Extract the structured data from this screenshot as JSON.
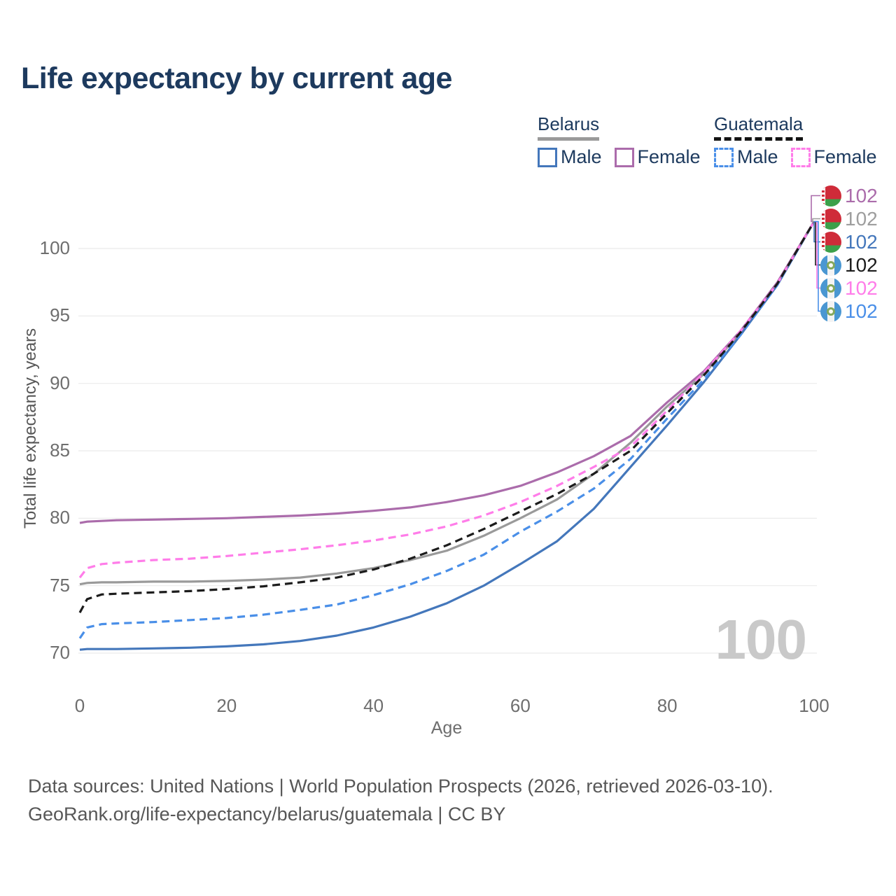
{
  "title": "Life expectancy by current age",
  "watermark": "100",
  "legend": {
    "groups": [
      {
        "name": "Belarus",
        "line_style": "solid",
        "underline_color": "#9a9a9a",
        "items": [
          {
            "label": "Male",
            "color": "#4477bb"
          },
          {
            "label": "Female",
            "color": "#ab6cab"
          }
        ]
      },
      {
        "name": "Guatemala",
        "line_style": "dashed",
        "underline_color": "#141414",
        "items": [
          {
            "label": "Male",
            "color": "#4a8fe8"
          },
          {
            "label": "Female",
            "color": "#ff7de9"
          }
        ]
      }
    ]
  },
  "right_labels": [
    {
      "flag": "Belarus",
      "value": "102",
      "color": "#ab6cab"
    },
    {
      "flag": "Belarus",
      "value": "102",
      "color": "#9e9e9e"
    },
    {
      "flag": "Belarus",
      "value": "102",
      "color": "#4477bb"
    },
    {
      "flag": "Guatemala",
      "value": "102",
      "color": "#1c1c1c"
    },
    {
      "flag": "Guatemala",
      "value": "102",
      "color": "#ff7de9"
    },
    {
      "flag": "Guatemala",
      "value": "102",
      "color": "#4a8fe8"
    }
  ],
  "chart_data": {
    "type": "line",
    "title": "Life expectancy by current age",
    "xlabel": "Age",
    "ylabel": "Total life expectancy, years",
    "xlim": [
      0,
      100
    ],
    "ylim": [
      68.5,
      103
    ],
    "x_ticks": [
      0,
      20,
      40,
      60,
      80,
      100
    ],
    "y_ticks": [
      70,
      75,
      80,
      85,
      90,
      95,
      100
    ],
    "grid": true,
    "legend_position": "top-right",
    "end_value": 102,
    "x": [
      0,
      1,
      3,
      5,
      10,
      15,
      20,
      25,
      30,
      35,
      40,
      45,
      50,
      55,
      60,
      65,
      70,
      75,
      80,
      85,
      90,
      95,
      100
    ],
    "series": [
      {
        "name": "Belarus Female",
        "color": "#ab6cab",
        "dash": false,
        "values": [
          79.65,
          79.75,
          79.8,
          79.85,
          79.9,
          79.95,
          80.0,
          80.1,
          80.2,
          80.35,
          80.55,
          80.8,
          81.2,
          81.7,
          82.4,
          83.4,
          84.6,
          86.1,
          88.6,
          90.9,
          93.9,
          97.5,
          102
        ]
      },
      {
        "name": "Belarus",
        "color": "#9a9a9a",
        "dash": false,
        "values": [
          75.1,
          75.2,
          75.25,
          75.25,
          75.3,
          75.3,
          75.35,
          75.45,
          75.6,
          75.9,
          76.3,
          76.9,
          77.6,
          78.7,
          80.0,
          81.4,
          83.3,
          85.6,
          88.3,
          90.7,
          93.8,
          97.4,
          102
        ]
      },
      {
        "name": "Belarus Male",
        "color": "#4477bb",
        "dash": false,
        "values": [
          70.25,
          70.3,
          70.3,
          70.3,
          70.35,
          70.4,
          70.5,
          70.65,
          70.9,
          71.3,
          71.9,
          72.7,
          73.7,
          75.0,
          76.6,
          78.3,
          80.7,
          83.8,
          86.9,
          90.1,
          93.6,
          97.3,
          102
        ]
      },
      {
        "name": "Guatemala",
        "color": "#1c1c1c",
        "dash": true,
        "values": [
          73.0,
          74.0,
          74.35,
          74.4,
          74.5,
          74.6,
          74.75,
          74.95,
          75.25,
          75.6,
          76.2,
          77.0,
          78.0,
          79.2,
          80.5,
          81.8,
          83.3,
          85.0,
          87.8,
          90.6,
          93.8,
          97.4,
          102
        ]
      },
      {
        "name": "Guatemala Female",
        "color": "#ff7de9",
        "dash": true,
        "values": [
          75.6,
          76.3,
          76.6,
          76.7,
          76.9,
          77.0,
          77.2,
          77.45,
          77.7,
          78.0,
          78.35,
          78.8,
          79.4,
          80.2,
          81.2,
          82.4,
          83.8,
          85.3,
          88.0,
          90.8,
          93.9,
          97.4,
          102
        ]
      },
      {
        "name": "Guatemala Male",
        "color": "#4a8fe8",
        "dash": true,
        "values": [
          71.1,
          71.9,
          72.15,
          72.2,
          72.3,
          72.45,
          72.6,
          72.85,
          73.2,
          73.6,
          74.3,
          75.1,
          76.1,
          77.3,
          79.0,
          80.5,
          82.2,
          84.4,
          87.4,
          90.3,
          93.6,
          97.3,
          102
        ]
      }
    ]
  },
  "footer": {
    "line1": "Data sources: United Nations | World Population Prospects (2026, retrieved 2026-03-10).",
    "line2": "GeoRank.org/life-expectancy/belarus/guatemala | CC BY"
  }
}
